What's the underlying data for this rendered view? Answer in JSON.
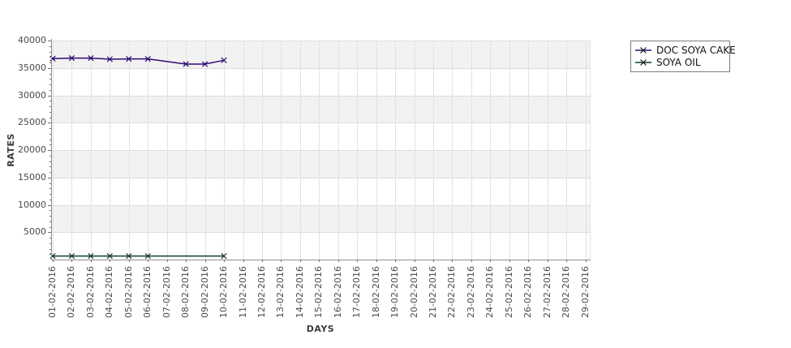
{
  "chart_data": {
    "type": "line",
    "title": "",
    "xlabel": "DAYS",
    "ylabel": "RATES",
    "categories": [
      "01-02-2016",
      "02-02-2016",
      "03-02-2016",
      "04-02-2016",
      "05-02-2016",
      "06-02-2016",
      "07-02-2016",
      "08-02-2016",
      "09-02-2016",
      "10-02-2016",
      "11-02-2016",
      "12-02-2016",
      "13-02-2016",
      "14-02-2016",
      "15-02-2016",
      "16-02-2016",
      "17-02-2016",
      "18-02-2016",
      "19-02-2016",
      "20-02-2016",
      "21-02-2016",
      "22-02-2016",
      "23-02-2016",
      "24-02-2016",
      "25-02-2016",
      "26-02-2016",
      "27-02-2016",
      "28-02-2016",
      "29-02-2016"
    ],
    "ylim": [
      0,
      40000
    ],
    "yticks": [
      5000,
      10000,
      15000,
      20000,
      25000,
      30000,
      35000,
      40000
    ],
    "ytick_minor_step": 1000,
    "grid": true,
    "plot_bands": {
      "band_color": "#f2f2f2",
      "alt_color": "#ffffff"
    },
    "legend_position": "outside-right",
    "series": [
      {
        "name": "DOC SOYA CAKE",
        "color": "#2d0a75",
        "marker": "x",
        "values": [
          36700,
          36800,
          36800,
          36600,
          36650,
          36650,
          null,
          35700,
          35700,
          36400,
          null,
          null,
          null,
          null,
          null,
          null,
          null,
          null,
          null,
          null,
          null,
          null,
          null,
          null,
          null,
          null,
          null,
          null,
          null
        ]
      },
      {
        "name": "SOYA OIL",
        "color": "#0e3c3a",
        "marker": "x",
        "values": [
          650,
          650,
          650,
          650,
          650,
          650,
          null,
          null,
          null,
          650,
          null,
          null,
          null,
          null,
          null,
          null,
          null,
          null,
          null,
          null,
          null,
          null,
          null,
          null,
          null,
          null,
          null,
          null,
          null
        ]
      }
    ]
  }
}
